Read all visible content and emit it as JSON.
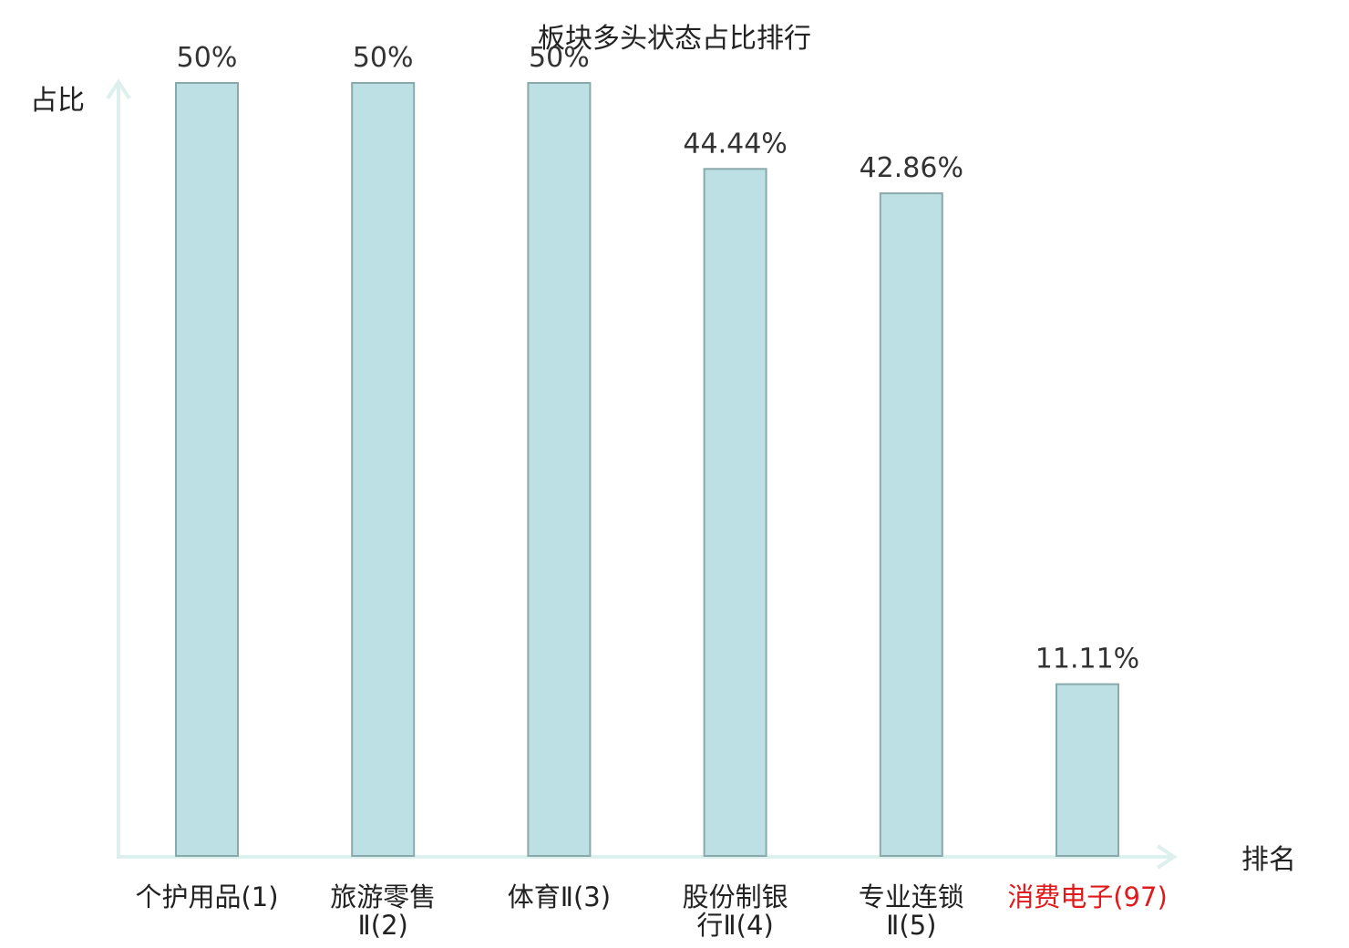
{
  "chart_data": {
    "type": "bar",
    "title": "板块多头状态占比排行",
    "xlabel": "排名",
    "ylabel": "占比",
    "ylim": [
      0,
      50
    ],
    "grid": false,
    "categories": [
      [
        "个护用品(1)"
      ],
      [
        "旅游零售",
        "Ⅱ(2)"
      ],
      [
        "体育Ⅱ(3)"
      ],
      [
        "股份制银",
        "行Ⅱ(4)"
      ],
      [
        "专业连锁",
        "Ⅱ(5)"
      ],
      [
        "消费电子(97)"
      ]
    ],
    "values": [
      50,
      50,
      50,
      44.44,
      42.86,
      11.11
    ],
    "value_labels": [
      "50%",
      "50%",
      "50%",
      "44.44%",
      "42.86%",
      "11.11%"
    ],
    "highlight_index": 5,
    "colors": {
      "bar_fill": "#bce0e3",
      "bar_stroke": "#8aa9ab",
      "axis": "#dcf0ee",
      "highlight_text": "#e0191b"
    }
  }
}
